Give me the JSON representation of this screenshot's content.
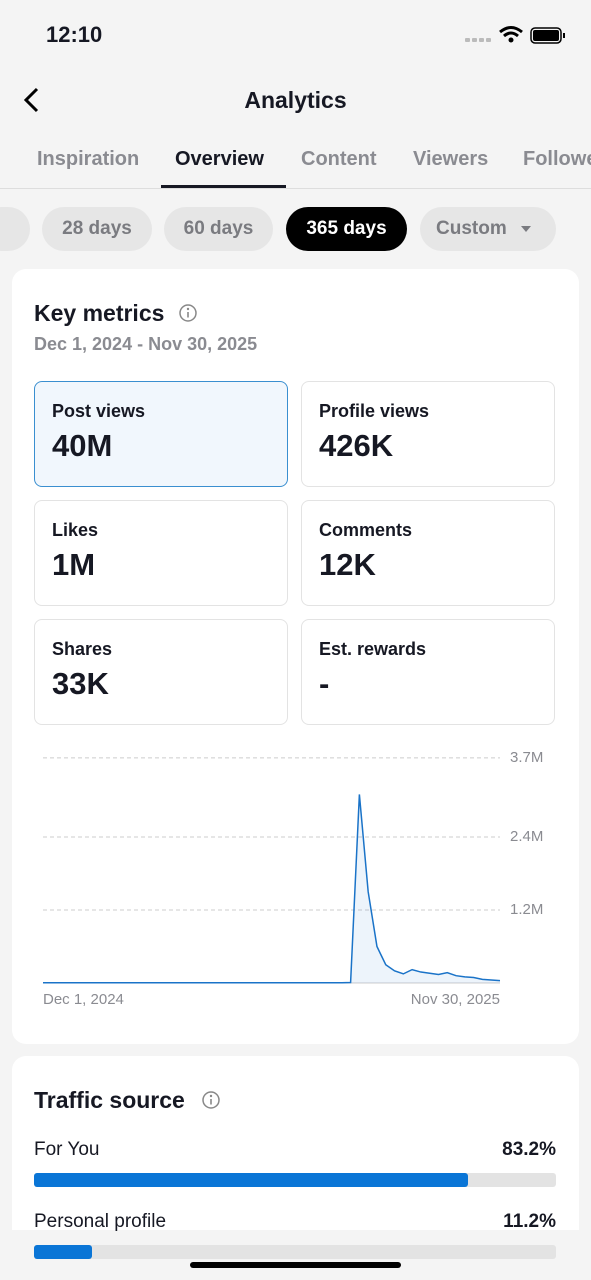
{
  "status": {
    "time": "12:10"
  },
  "header": {
    "title": "Analytics"
  },
  "tabs": [
    "Inspiration",
    "Overview",
    "Content",
    "Viewers",
    "Followers"
  ],
  "ranges": [
    "28 days",
    "60 days",
    "365 days",
    "Custom"
  ],
  "key_metrics": {
    "title": "Key metrics",
    "date_range": "Dec 1, 2024 - Nov 30, 2025",
    "metrics": [
      {
        "label": "Post views",
        "value": "40M"
      },
      {
        "label": "Profile views",
        "value": "426K"
      },
      {
        "label": "Likes",
        "value": "1M"
      },
      {
        "label": "Comments",
        "value": "12K"
      },
      {
        "label": "Shares",
        "value": "33K"
      },
      {
        "label": "Est. rewards",
        "value": "-"
      }
    ]
  },
  "chart_data": {
    "type": "line",
    "color": "#1a73c8",
    "categories": [
      "Dec 1, 2024",
      null,
      null,
      null,
      null,
      null,
      null,
      null,
      null,
      null,
      null,
      null,
      null,
      null,
      null,
      null,
      null,
      null,
      null,
      null,
      null,
      null,
      null,
      null,
      null,
      null,
      null,
      null,
      null,
      null,
      null,
      null,
      null,
      null,
      null,
      null,
      null,
      null,
      null,
      null,
      null,
      null,
      null,
      null,
      null,
      null,
      null,
      null,
      null,
      null,
      null,
      null,
      "Nov 30, 2025"
    ],
    "values": [
      5000,
      5000,
      5000,
      5000,
      5000,
      5000,
      5000,
      5000,
      5000,
      5000,
      5000,
      5000,
      5000,
      5000,
      5000,
      5000,
      5000,
      5000,
      5000,
      5000,
      5000,
      5000,
      5000,
      5000,
      5000,
      5000,
      5000,
      5000,
      5000,
      5000,
      5000,
      5000,
      5000,
      5000,
      5000,
      8000,
      3100000,
      1500000,
      600000,
      300000,
      200000,
      150000,
      220000,
      180000,
      160000,
      140000,
      170000,
      120000,
      100000,
      90000,
      60000,
      50000,
      40000
    ],
    "ylim": [
      0,
      3700000
    ],
    "yticks": [
      {
        "value": 1200000,
        "label": "1.2M"
      },
      {
        "value": 2400000,
        "label": "2.4M"
      },
      {
        "value": 3700000,
        "label": "3.7M"
      }
    ],
    "grid": true
  },
  "traffic": {
    "title": "Traffic source",
    "items": [
      {
        "label": "For You",
        "value": 83.2,
        "value_label": "83.2%"
      },
      {
        "label": "Personal profile",
        "value": 11.2,
        "value_label": "11.2%"
      }
    ]
  }
}
